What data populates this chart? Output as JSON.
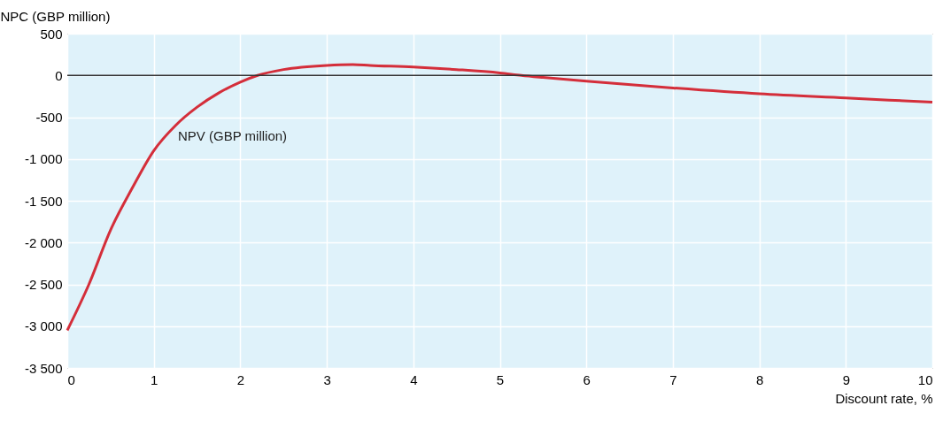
{
  "chart_data": {
    "type": "line",
    "xlabel": "Discount rate, %",
    "ylabel": "NPC (GBP million)",
    "x": [
      0,
      0.25,
      0.5,
      0.75,
      1,
      1.25,
      1.5,
      1.75,
      2,
      2.2,
      2.5,
      3,
      3.3,
      3.5,
      4,
      4.5,
      5,
      5.25,
      5.5,
      6,
      7,
      8,
      9,
      10
    ],
    "series": [
      {
        "color": "#d42e3a",
        "values": [
          -3050,
          -2500,
          -1850,
          -1350,
          -900,
          -600,
          -380,
          -210,
          -80,
          0,
          70,
          120,
          130,
          120,
          100,
          70,
          30,
          0,
          -25,
          -70,
          -150,
          -220,
          -270,
          -320
        ]
      }
    ],
    "annotations": [
      "NPV (GBP million)"
    ],
    "xlim": [
      0,
      10
    ],
    "xticks": [
      0,
      1,
      2,
      3,
      4,
      5,
      6,
      7,
      8,
      9,
      10
    ],
    "ylim": [
      -3500,
      500
    ],
    "yticks": [
      {
        "value": -3500,
        "label": "-3 500"
      },
      {
        "value": -3000,
        "label": "-3 000"
      },
      {
        "value": -2500,
        "label": "-2 500"
      },
      {
        "value": -2000,
        "label": "-2 000"
      },
      {
        "value": -1500,
        "label": "-1 500"
      },
      {
        "value": -1000,
        "label": "-1 000"
      },
      -500,
      0,
      500
    ],
    "ref_lines": [
      {
        "axis": "y",
        "value": 0,
        "color": "#333333"
      }
    ],
    "grid": true,
    "line_style": "solid",
    "marker": "none"
  }
}
